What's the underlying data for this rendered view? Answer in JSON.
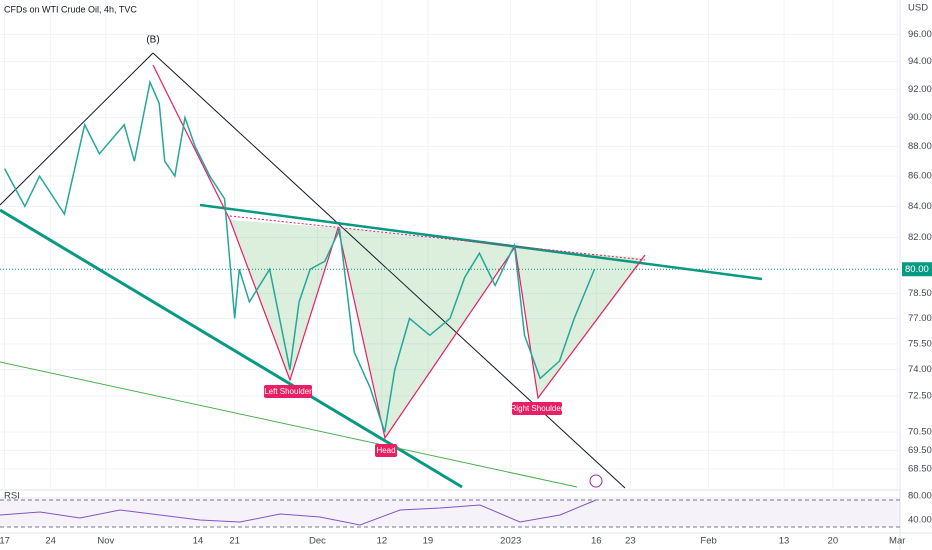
{
  "chart_data": {
    "type": "line",
    "title": "CFDs on WTI Crude Oil, 4h, TVC",
    "y_axis_label": "USD",
    "log_scale": true,
    "ylim": [
      67.4,
      98.6
    ],
    "yticks": [
      {
        "value": 96,
        "label": "96.00"
      },
      {
        "value": 94,
        "label": "94.00"
      },
      {
        "value": 92,
        "label": "92.00"
      },
      {
        "value": 90,
        "label": "90.00"
      },
      {
        "value": 88,
        "label": "88.00"
      },
      {
        "value": 86,
        "label": "86.00"
      },
      {
        "value": 84,
        "label": "84.00"
      },
      {
        "value": 82,
        "label": "82.00"
      },
      {
        "value": 78.5,
        "label": "78.50"
      },
      {
        "value": 77,
        "label": "77.00"
      },
      {
        "value": 75.5,
        "label": "75.50"
      },
      {
        "value": 74,
        "label": "74.00"
      },
      {
        "value": 72.5,
        "label": "72.50"
      },
      {
        "value": 70.5,
        "label": "70.50"
      },
      {
        "value": 69.5,
        "label": "69.50"
      },
      {
        "value": 68.5,
        "label": "68.50"
      }
    ],
    "xlim": [
      -0.5,
      97.3
    ],
    "xticks": [
      {
        "value": 0,
        "label": "17"
      },
      {
        "value": 5,
        "label": "24"
      },
      {
        "value": 11,
        "label": "Nov"
      },
      {
        "value": 21,
        "label": "14"
      },
      {
        "value": 25,
        "label": "21"
      },
      {
        "value": 34,
        "label": "Dec"
      },
      {
        "value": 41,
        "label": "12"
      },
      {
        "value": 46,
        "label": "19"
      },
      {
        "value": 55,
        "label": "2023"
      },
      {
        "value": 64.3,
        "label": "16"
      },
      {
        "value": 68,
        "label": "23"
      },
      {
        "value": 76.5,
        "label": "Feb"
      },
      {
        "value": 84.7,
        "label": "13"
      },
      {
        "value": 90,
        "label": "20"
      },
      {
        "value": 97,
        "label": "Mar"
      }
    ],
    "last_price": {
      "value": 80,
      "label": "80.00"
    },
    "series": [
      {
        "name": "WTI",
        "color": "#26a69a",
        "x": [
          0,
          2.2,
          3.8,
          6.5,
          8.7,
          10.3,
          13,
          14.1,
          15.8,
          16.8,
          17.4,
          18.5,
          19.6,
          20.7,
          22.3,
          23.9,
          25,
          25.5,
          26.6,
          28.8,
          31,
          32,
          33.2,
          34.8,
          36.4,
          38,
          39.7,
          41.3,
          42.4,
          44,
          46.2,
          48.4,
          50,
          51.6,
          53.3,
          55.4,
          56.5,
          58.2,
          60.3,
          61.9,
          64.1
        ],
        "values": [
          86.5,
          84,
          86,
          83.5,
          89.5,
          87.5,
          89.5,
          87,
          92.5,
          91,
          87,
          86,
          90,
          88,
          86,
          84.5,
          77,
          80,
          78,
          80,
          74,
          78,
          80,
          80.5,
          82.5,
          75,
          73,
          70.5,
          74,
          77,
          76,
          77,
          79.5,
          81,
          79,
          81.5,
          76,
          73.5,
          74.5,
          77,
          80
        ]
      }
    ],
    "annotations": [
      "(B)",
      "Left Shoulder",
      "Head",
      "Right Shoulder"
    ],
    "rsi_label": "RSI",
    "rsi_ticks": [
      "80.00",
      "40.00"
    ]
  }
}
